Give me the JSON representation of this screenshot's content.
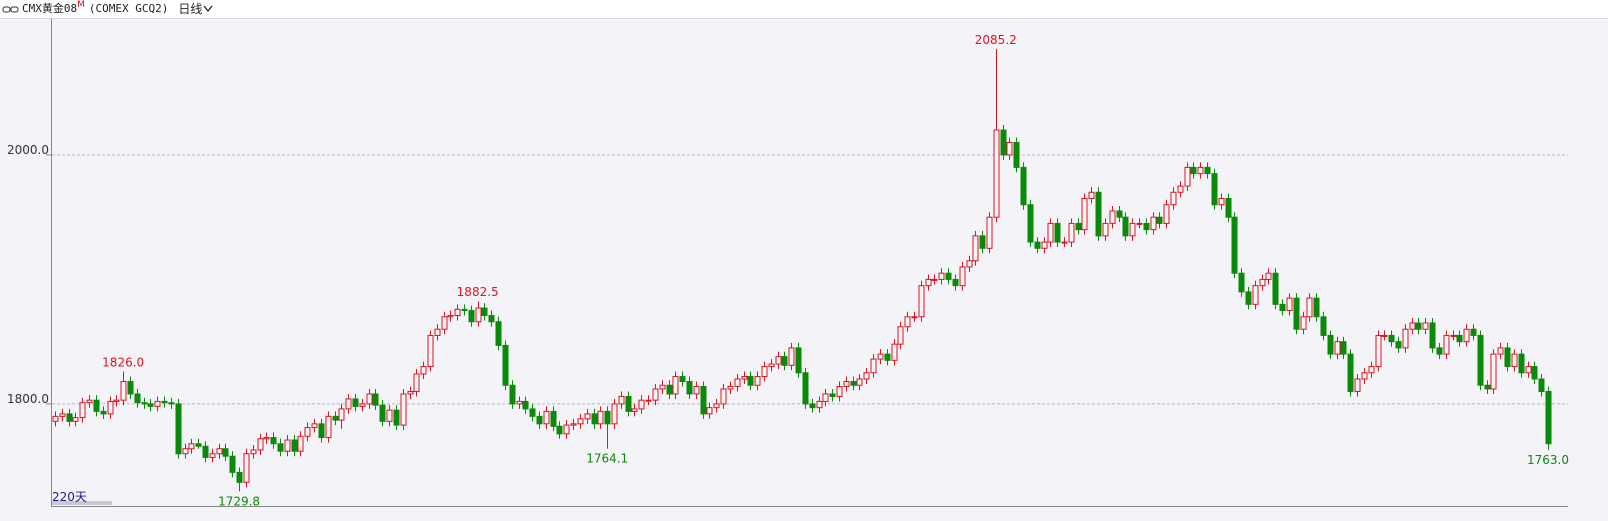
{
  "header": {
    "symbol": "CMX黄金08",
    "flag": "M",
    "code": "(COMEX GCQ2)",
    "period": "日线"
  },
  "footer": {
    "days": "220天"
  },
  "chart_data": {
    "type": "candlestick",
    "up_color": "#e0141e",
    "down_color": "#0a8a0a",
    "grid": true,
    "ylim": [
      1718,
      2110
    ],
    "yticks": [
      {
        "value": 1800,
        "label": "1800.0"
      },
      {
        "value": 2000,
        "label": "2000.0"
      }
    ],
    "open": [
      1786,
      1790,
      1792,
      1786,
      1789,
      1801,
      1803,
      1794,
      1792,
      1802,
      1803,
      1818,
      1808,
      1801,
      1800,
      1798,
      1802,
      1801,
      1800,
      1760,
      1764,
      1768,
      1766,
      1757,
      1760,
      1764,
      1758,
      1745,
      1737,
      1760,
      1763,
      1772,
      1773,
      1768,
      1762,
      1771,
      1762,
      1774,
      1781,
      1784,
      1773,
      1790,
      1787,
      1796,
      1804,
      1798,
      1800,
      1808,
      1799,
      1786,
      1795,
      1783,
      1808,
      1810,
      1824,
      1830,
      1855,
      1860,
      1870,
      1871,
      1876,
      1875,
      1866,
      1877,
      1871,
      1866,
      1847,
      1815,
      1800,
      1802,
      1796,
      1790,
      1784,
      1794,
      1782,
      1776,
      1783,
      1784,
      1788,
      1792,
      1784,
      1794,
      1784,
      1800,
      1806,
      1794,
      1796,
      1803,
      1803,
      1812,
      1815,
      1808,
      1822,
      1818,
      1808,
      1814,
      1792,
      1797,
      1800,
      1812,
      1814,
      1820,
      1822,
      1815,
      1822,
      1830,
      1832,
      1838,
      1831,
      1845,
      1825,
      1800,
      1797,
      1802,
      1808,
      1806,
      1814,
      1818,
      1815,
      1820,
      1825,
      1836,
      1840,
      1835,
      1848,
      1862,
      1870,
      1870,
      1895,
      1900,
      1900,
      1905,
      1900,
      1895,
      1910,
      1915,
      1935,
      1925,
      1950,
      2020,
      2000,
      2010,
      1990,
      1960,
      1930,
      1925,
      1930,
      1945,
      1930,
      1930,
      1945,
      1940,
      1965,
      1970,
      1935,
      1945,
      1955,
      1950,
      1935,
      1945,
      1945,
      1940,
      1950,
      1945,
      1960,
      1970,
      1975,
      1990,
      1985,
      1990,
      1985,
      1960,
      1965,
      1950,
      1905,
      1890,
      1880,
      1895,
      1900,
      1905,
      1880,
      1875,
      1885,
      1860,
      1870,
      1885,
      1870,
      1855,
      1840,
      1850,
      1840,
      1810,
      1820,
      1825,
      1830,
      1855,
      1855,
      1850,
      1845,
      1860,
      1865,
      1860,
      1865,
      1845,
      1840,
      1855,
      1855,
      1850,
      1860,
      1855,
      1815,
      1812,
      1840,
      1845,
      1830,
      1840,
      1825,
      1830,
      1820,
      1810
    ],
    "high": [
      1794,
      1796,
      1796,
      1793,
      1805,
      1807,
      1807,
      1798,
      1806,
      1807,
      1826,
      1822,
      1812,
      1805,
      1804,
      1806,
      1806,
      1805,
      1804,
      1768,
      1772,
      1772,
      1770,
      1764,
      1768,
      1768,
      1762,
      1749,
      1764,
      1767,
      1776,
      1777,
      1777,
      1772,
      1775,
      1775,
      1778,
      1785,
      1788,
      1788,
      1794,
      1794,
      1800,
      1808,
      1808,
      1804,
      1812,
      1812,
      1803,
      1799,
      1799,
      1812,
      1814,
      1828,
      1834,
      1859,
      1864,
      1874,
      1875,
      1880,
      1880,
      1879,
      1882.5,
      1881,
      1875,
      1870,
      1851,
      1819,
      1806,
      1806,
      1800,
      1794,
      1798,
      1798,
      1786,
      1787,
      1788,
      1792,
      1796,
      1796,
      1798,
      1798,
      1804,
      1810,
      1810,
      1800,
      1807,
      1807,
      1816,
      1819,
      1819,
      1826,
      1826,
      1822,
      1818,
      1818,
      1801,
      1804,
      1816,
      1818,
      1824,
      1826,
      1826,
      1826,
      1834,
      1836,
      1842,
      1842,
      1849,
      1849,
      1829,
      1804,
      1806,
      1812,
      1812,
      1818,
      1822,
      1822,
      1824,
      1829,
      1840,
      1844,
      1844,
      1852,
      1866,
      1874,
      1874,
      1899,
      1904,
      1904,
      1909,
      1909,
      1904,
      1914,
      1919,
      1939,
      1939,
      1954,
      2085.2,
      2024,
      2014,
      2014,
      1994,
      1964,
      1934,
      1934,
      1949,
      1949,
      1934,
      1949,
      1949,
      1969,
      1974,
      1974,
      1949,
      1959,
      1959,
      1954,
      1949,
      1949,
      1949,
      1954,
      1954,
      1964,
      1974,
      1979,
      1994,
      1994,
      1994,
      1994,
      1989,
      1969,
      1969,
      1954,
      1909,
      1894,
      1899,
      1904,
      1909,
      1909,
      1884,
      1889,
      1889,
      1874,
      1889,
      1889,
      1874,
      1859,
      1854,
      1854,
      1844,
      1824,
      1829,
      1834,
      1859,
      1859,
      1859,
      1854,
      1864,
      1869,
      1869,
      1869,
      1869,
      1849,
      1859,
      1859,
      1859,
      1864,
      1864,
      1859,
      1819,
      1844,
      1849,
      1849,
      1844,
      1844,
      1834,
      1834,
      1824,
      1814
    ],
    "low": [
      1782,
      1786,
      1782,
      1782,
      1785,
      1797,
      1790,
      1788,
      1788,
      1798,
      1799,
      1804,
      1797,
      1796,
      1794,
      1794,
      1797,
      1796,
      1756,
      1756,
      1760,
      1764,
      1753,
      1753,
      1756,
      1754,
      1741,
      1729.8,
      1733,
      1756,
      1759,
      1768,
      1764,
      1758,
      1758,
      1758,
      1758,
      1770,
      1777,
      1769,
      1769,
      1783,
      1780,
      1792,
      1794,
      1794,
      1796,
      1795,
      1782,
      1782,
      1779,
      1779,
      1804,
      1806,
      1820,
      1826,
      1851,
      1856,
      1866,
      1867,
      1871,
      1862,
      1862,
      1867,
      1862,
      1843,
      1811,
      1796,
      1796,
      1792,
      1786,
      1780,
      1780,
      1778,
      1772,
      1772,
      1779,
      1780,
      1784,
      1780,
      1780,
      1764.1,
      1780,
      1796,
      1790,
      1790,
      1792,
      1799,
      1799,
      1808,
      1804,
      1804,
      1814,
      1804,
      1804,
      1788,
      1788,
      1793,
      1796,
      1808,
      1810,
      1816,
      1811,
      1811,
      1818,
      1826,
      1828,
      1827,
      1827,
      1821,
      1796,
      1793,
      1793,
      1798,
      1802,
      1802,
      1810,
      1811,
      1811,
      1816,
      1821,
      1832,
      1831,
      1831,
      1844,
      1858,
      1866,
      1866,
      1891,
      1896,
      1896,
      1896,
      1891,
      1891,
      1906,
      1911,
      1921,
      1921,
      1946,
      1996,
      1996,
      1986,
      1956,
      1926,
      1921,
      1921,
      1926,
      1926,
      1926,
      1926,
      1936,
      1936,
      1961,
      1931,
      1931,
      1941,
      1946,
      1931,
      1931,
      1941,
      1936,
      1936,
      1941,
      1941,
      1956,
      1966,
      1971,
      1981,
      1981,
      1981,
      1956,
      1956,
      1946,
      1901,
      1886,
      1876,
      1876,
      1891,
      1896,
      1876,
      1871,
      1871,
      1856,
      1856,
      1866,
      1866,
      1851,
      1836,
      1836,
      1836,
      1806,
      1806,
      1816,
      1821,
      1826,
      1851,
      1846,
      1841,
      1841,
      1856,
      1856,
      1856,
      1841,
      1836,
      1836,
      1851,
      1846,
      1846,
      1851,
      1811,
      1808,
      1808,
      1836,
      1826,
      1826,
      1821,
      1821,
      1816,
      1806,
      1763.0
    ],
    "close": [
      1790,
      1792,
      1786,
      1789,
      1801,
      1803,
      1794,
      1792,
      1802,
      1803,
      1818,
      1808,
      1801,
      1800,
      1798,
      1802,
      1801,
      1800,
      1760,
      1764,
      1768,
      1766,
      1757,
      1760,
      1764,
      1758,
      1745,
      1737,
      1760,
      1763,
      1772,
      1773,
      1768,
      1762,
      1771,
      1762,
      1774,
      1781,
      1784,
      1773,
      1790,
      1787,
      1796,
      1804,
      1798,
      1800,
      1808,
      1799,
      1786,
      1795,
      1783,
      1808,
      1810,
      1824,
      1830,
      1855,
      1860,
      1870,
      1871,
      1876,
      1875,
      1866,
      1877,
      1871,
      1866,
      1847,
      1815,
      1800,
      1802,
      1796,
      1790,
      1784,
      1794,
      1782,
      1776,
      1783,
      1784,
      1788,
      1792,
      1784,
      1794,
      1784,
      1800,
      1806,
      1794,
      1796,
      1803,
      1803,
      1812,
      1815,
      1808,
      1822,
      1818,
      1808,
      1814,
      1792,
      1797,
      1800,
      1812,
      1814,
      1820,
      1822,
      1815,
      1822,
      1830,
      1832,
      1838,
      1831,
      1845,
      1825,
      1800,
      1797,
      1802,
      1808,
      1806,
      1814,
      1818,
      1815,
      1820,
      1825,
      1836,
      1840,
      1835,
      1848,
      1862,
      1870,
      1870,
      1895,
      1900,
      1900,
      1905,
      1900,
      1895,
      1910,
      1915,
      1935,
      1925,
      1950,
      2020,
      2000,
      2010,
      1990,
      1960,
      1930,
      1925,
      1930,
      1945,
      1930,
      1930,
      1945,
      1940,
      1965,
      1970,
      1935,
      1945,
      1955,
      1950,
      1935,
      1945,
      1945,
      1940,
      1950,
      1945,
      1960,
      1970,
      1975,
      1990,
      1985,
      1990,
      1985,
      1960,
      1965,
      1950,
      1905,
      1890,
      1880,
      1895,
      1900,
      1905,
      1880,
      1875,
      1885,
      1860,
      1870,
      1885,
      1870,
      1855,
      1840,
      1850,
      1840,
      1810,
      1820,
      1825,
      1830,
      1855,
      1855,
      1850,
      1845,
      1860,
      1865,
      1860,
      1865,
      1845,
      1840,
      1855,
      1855,
      1850,
      1860,
      1855,
      1815,
      1812,
      1840,
      1845,
      1830,
      1840,
      1825,
      1830,
      1820,
      1810,
      1768
    ],
    "annotations": [
      {
        "label": "1826.0",
        "index": 10,
        "kind": "high"
      },
      {
        "label": "1729.8",
        "index": 27,
        "kind": "low"
      },
      {
        "label": "1882.5",
        "index": 62,
        "kind": "high"
      },
      {
        "label": "1764.1",
        "index": 81,
        "kind": "low"
      },
      {
        "label": "2085.2",
        "index": 138,
        "kind": "high"
      },
      {
        "label": "1763.0",
        "index": 219,
        "kind": "low"
      }
    ]
  }
}
